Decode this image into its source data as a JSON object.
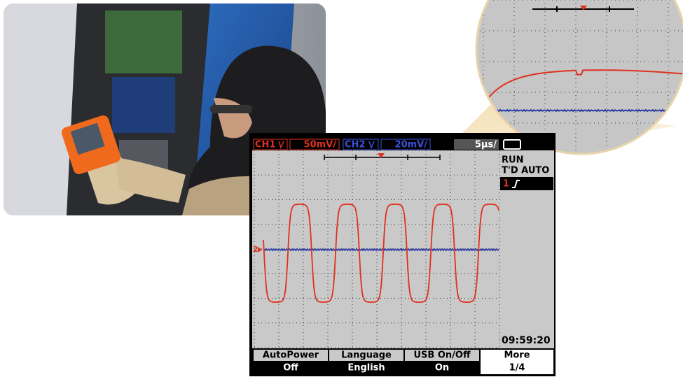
{
  "header": {
    "ch1": {
      "label": "CH1",
      "scale": "50mV/"
    },
    "ch2": {
      "label": "CH2",
      "scale": "20mV/"
    },
    "timebase": "5μs/"
  },
  "status": {
    "run": "RUN",
    "trigger": "T'D AUTO",
    "trigger_source": "1"
  },
  "channel_marker": "2",
  "clock": "09:59:20",
  "softkeys": [
    {
      "label": "AutoPower",
      "value": "Off"
    },
    {
      "label": "Language",
      "value": "English"
    },
    {
      "label": "USB On/Off",
      "value": "On"
    },
    {
      "label": "More",
      "value": "1/4"
    }
  ]
}
